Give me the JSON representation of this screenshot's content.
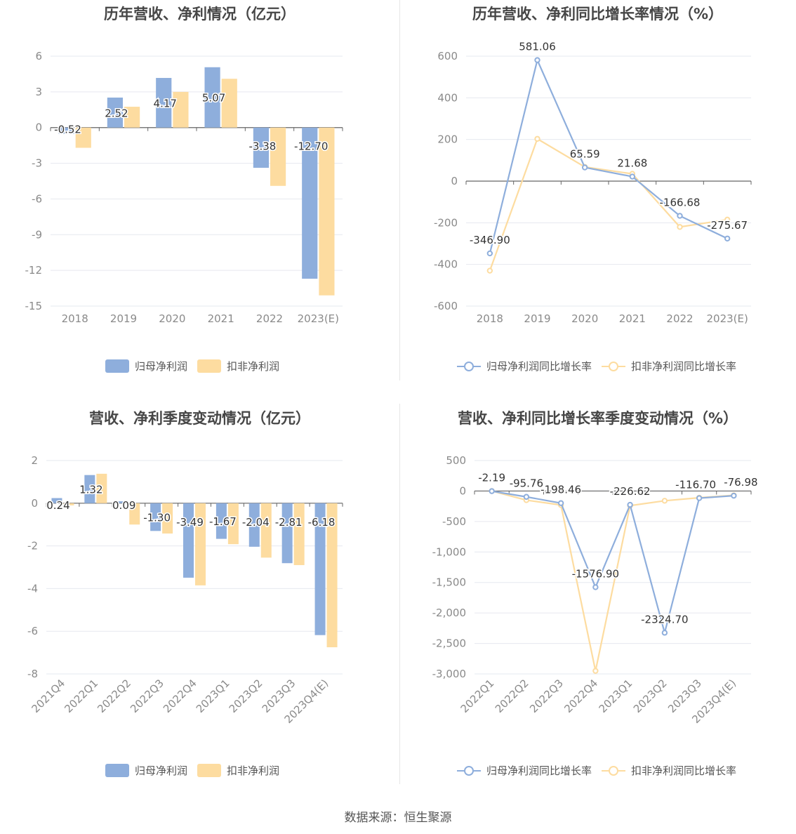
{
  "footer": {
    "source": "数据来源：恒生聚源"
  },
  "colors": {
    "blue": "#8eaedc",
    "yellow": "#fddca0",
    "line_blue": "#8eaedc",
    "line_yellow": "#fddca0",
    "grid": "#e6e8ef",
    "axis": "#666666",
    "tick": "#8a8a8a"
  },
  "chart_data": [
    {
      "type": "bar",
      "title": "历年营收、净利情况（亿元）",
      "categories": [
        "2018",
        "2019",
        "2020",
        "2021",
        "2022",
        "2023(E)"
      ],
      "series": [
        {
          "name": "归母净利润",
          "values": [
            -0.52,
            2.52,
            4.17,
            5.07,
            -3.38,
            -12.7
          ],
          "labels": [
            "-0.52",
            "2.52",
            "4.17",
            "5.07",
            "-3.38",
            "-12.70"
          ]
        },
        {
          "name": "扣非净利润",
          "values": [
            -1.7,
            1.75,
            3.0,
            4.1,
            -4.9,
            -14.1
          ]
        }
      ],
      "y_ticks": [
        "6",
        "3",
        "0",
        "-3",
        "-6",
        "-9",
        "-12",
        "-15"
      ],
      "ylim": [
        -15,
        6
      ],
      "grid": true,
      "legend": "bottom-center"
    },
    {
      "type": "line",
      "title": "历年营收、净利同比增长率情况（%）",
      "categories": [
        "2018",
        "2019",
        "2020",
        "2021",
        "2022",
        "2023(E)"
      ],
      "series": [
        {
          "name": "归母净利润同比增长率",
          "values": [
            -346.9,
            581.06,
            65.59,
            21.68,
            -166.68,
            -275.67
          ],
          "labels": [
            "-346.90",
            "581.06",
            "65.59",
            "21.68",
            "-166.68",
            "-275.67"
          ]
        },
        {
          "name": "扣非净利润同比增长率",
          "values": [
            -430,
            203,
            68,
            35,
            -220,
            -185
          ]
        }
      ],
      "y_ticks": [
        "600",
        "400",
        "200",
        "0",
        "-200",
        "-400",
        "-600"
      ],
      "ylim": [
        -600,
        600
      ],
      "grid": true,
      "legend": "bottom-center"
    },
    {
      "type": "bar",
      "title": "营收、净利季度变动情况（亿元）",
      "categories": [
        "2021Q4",
        "2022Q1",
        "2022Q2",
        "2022Q3",
        "2022Q4",
        "2023Q1",
        "2023Q2",
        "2023Q3",
        "2023Q4(E)"
      ],
      "series": [
        {
          "name": "归母净利润",
          "values": [
            0.24,
            1.32,
            0.09,
            -1.3,
            -3.49,
            -1.67,
            -2.04,
            -2.81,
            -6.18
          ],
          "labels": [
            "0.24",
            "1.32",
            "0.09",
            "-1.30",
            "-3.49",
            "-1.67",
            "-2.04",
            "-2.81",
            "-6.18"
          ]
        },
        {
          "name": "扣非净利润",
          "values": [
            -0.1,
            1.38,
            -1.0,
            -1.42,
            -3.85,
            -1.92,
            -2.55,
            -2.9,
            -6.75
          ]
        }
      ],
      "y_ticks": [
        "2",
        "0",
        "-2",
        "-4",
        "-6",
        "-8"
      ],
      "ylim": [
        -8,
        2
      ],
      "grid": true,
      "legend": "bottom-center"
    },
    {
      "type": "line",
      "title": "营收、净利同比增长率季度变动情况（%）",
      "categories": [
        "2022Q1",
        "2022Q2",
        "2022Q3",
        "2022Q4",
        "2023Q1",
        "2023Q2",
        "2023Q3",
        "2023Q4(E)"
      ],
      "series": [
        {
          "name": "归母净利润同比增长率",
          "values": [
            -2.19,
            -95.76,
            -198.46,
            -1576.9,
            -226.62,
            -2324.7,
            -116.7,
            -76.98
          ],
          "labels": [
            "-2.19",
            "-95.76",
            "-198.46",
            "-1576.90",
            "-226.62",
            "-2324.70",
            "-116.70",
            "-76.98"
          ]
        },
        {
          "name": "扣非净利润同比增长率",
          "values": [
            0,
            -150,
            -230,
            -2950,
            -240,
            -160,
            -110,
            -70
          ]
        }
      ],
      "y_ticks": [
        "500",
        "0",
        "-500",
        "-1,000",
        "-1,500",
        "-2,000",
        "-2,500",
        "-3,000"
      ],
      "ylim": [
        -3000,
        500
      ],
      "grid": true,
      "legend": "bottom-center"
    }
  ]
}
